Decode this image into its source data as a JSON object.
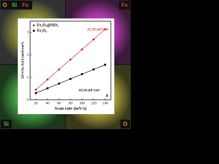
{
  "panels": {
    "top_left": [
      "O",
      "Si",
      "Fe"
    ],
    "top_right": "Fe",
    "bottom_left": "Si",
    "bottom_right": "O"
  },
  "chart_data": {
    "type": "line",
    "x_label": "Scan rate (mV/s)",
    "y_label": "ΔJ=(Ja-Jc)/2 (mA/cm²)",
    "x": [
      20,
      40,
      60,
      80,
      100,
      120,
      140
    ],
    "series": [
      {
        "name": "Fe₃O₄@SiO₂",
        "color": "#d62728",
        "marker": "circle",
        "values": [
          0.45,
          0.9,
          1.35,
          1.79,
          2.24,
          2.69,
          3.14
        ]
      },
      {
        "name": "Fe₃O₄",
        "color": "#000000",
        "marker": "square",
        "values": [
          0.3,
          0.51,
          0.72,
          0.93,
          1.14,
          1.35,
          1.56
        ]
      }
    ],
    "annotations": [
      {
        "text": "22.39 mF/cm²",
        "color": "#d62728"
      },
      {
        "text": "10.54 mF/cm²",
        "color": "#000000"
      },
      {
        "text": "a",
        "color": "#000000"
      }
    ],
    "xlim": [
      10,
      150
    ],
    "xticks": [
      20,
      40,
      60,
      80,
      100,
      120,
      140
    ],
    "ylim": [
      0,
      3.5
    ],
    "yticks": [
      0,
      1,
      2,
      3
    ],
    "legend": "upper left"
  }
}
